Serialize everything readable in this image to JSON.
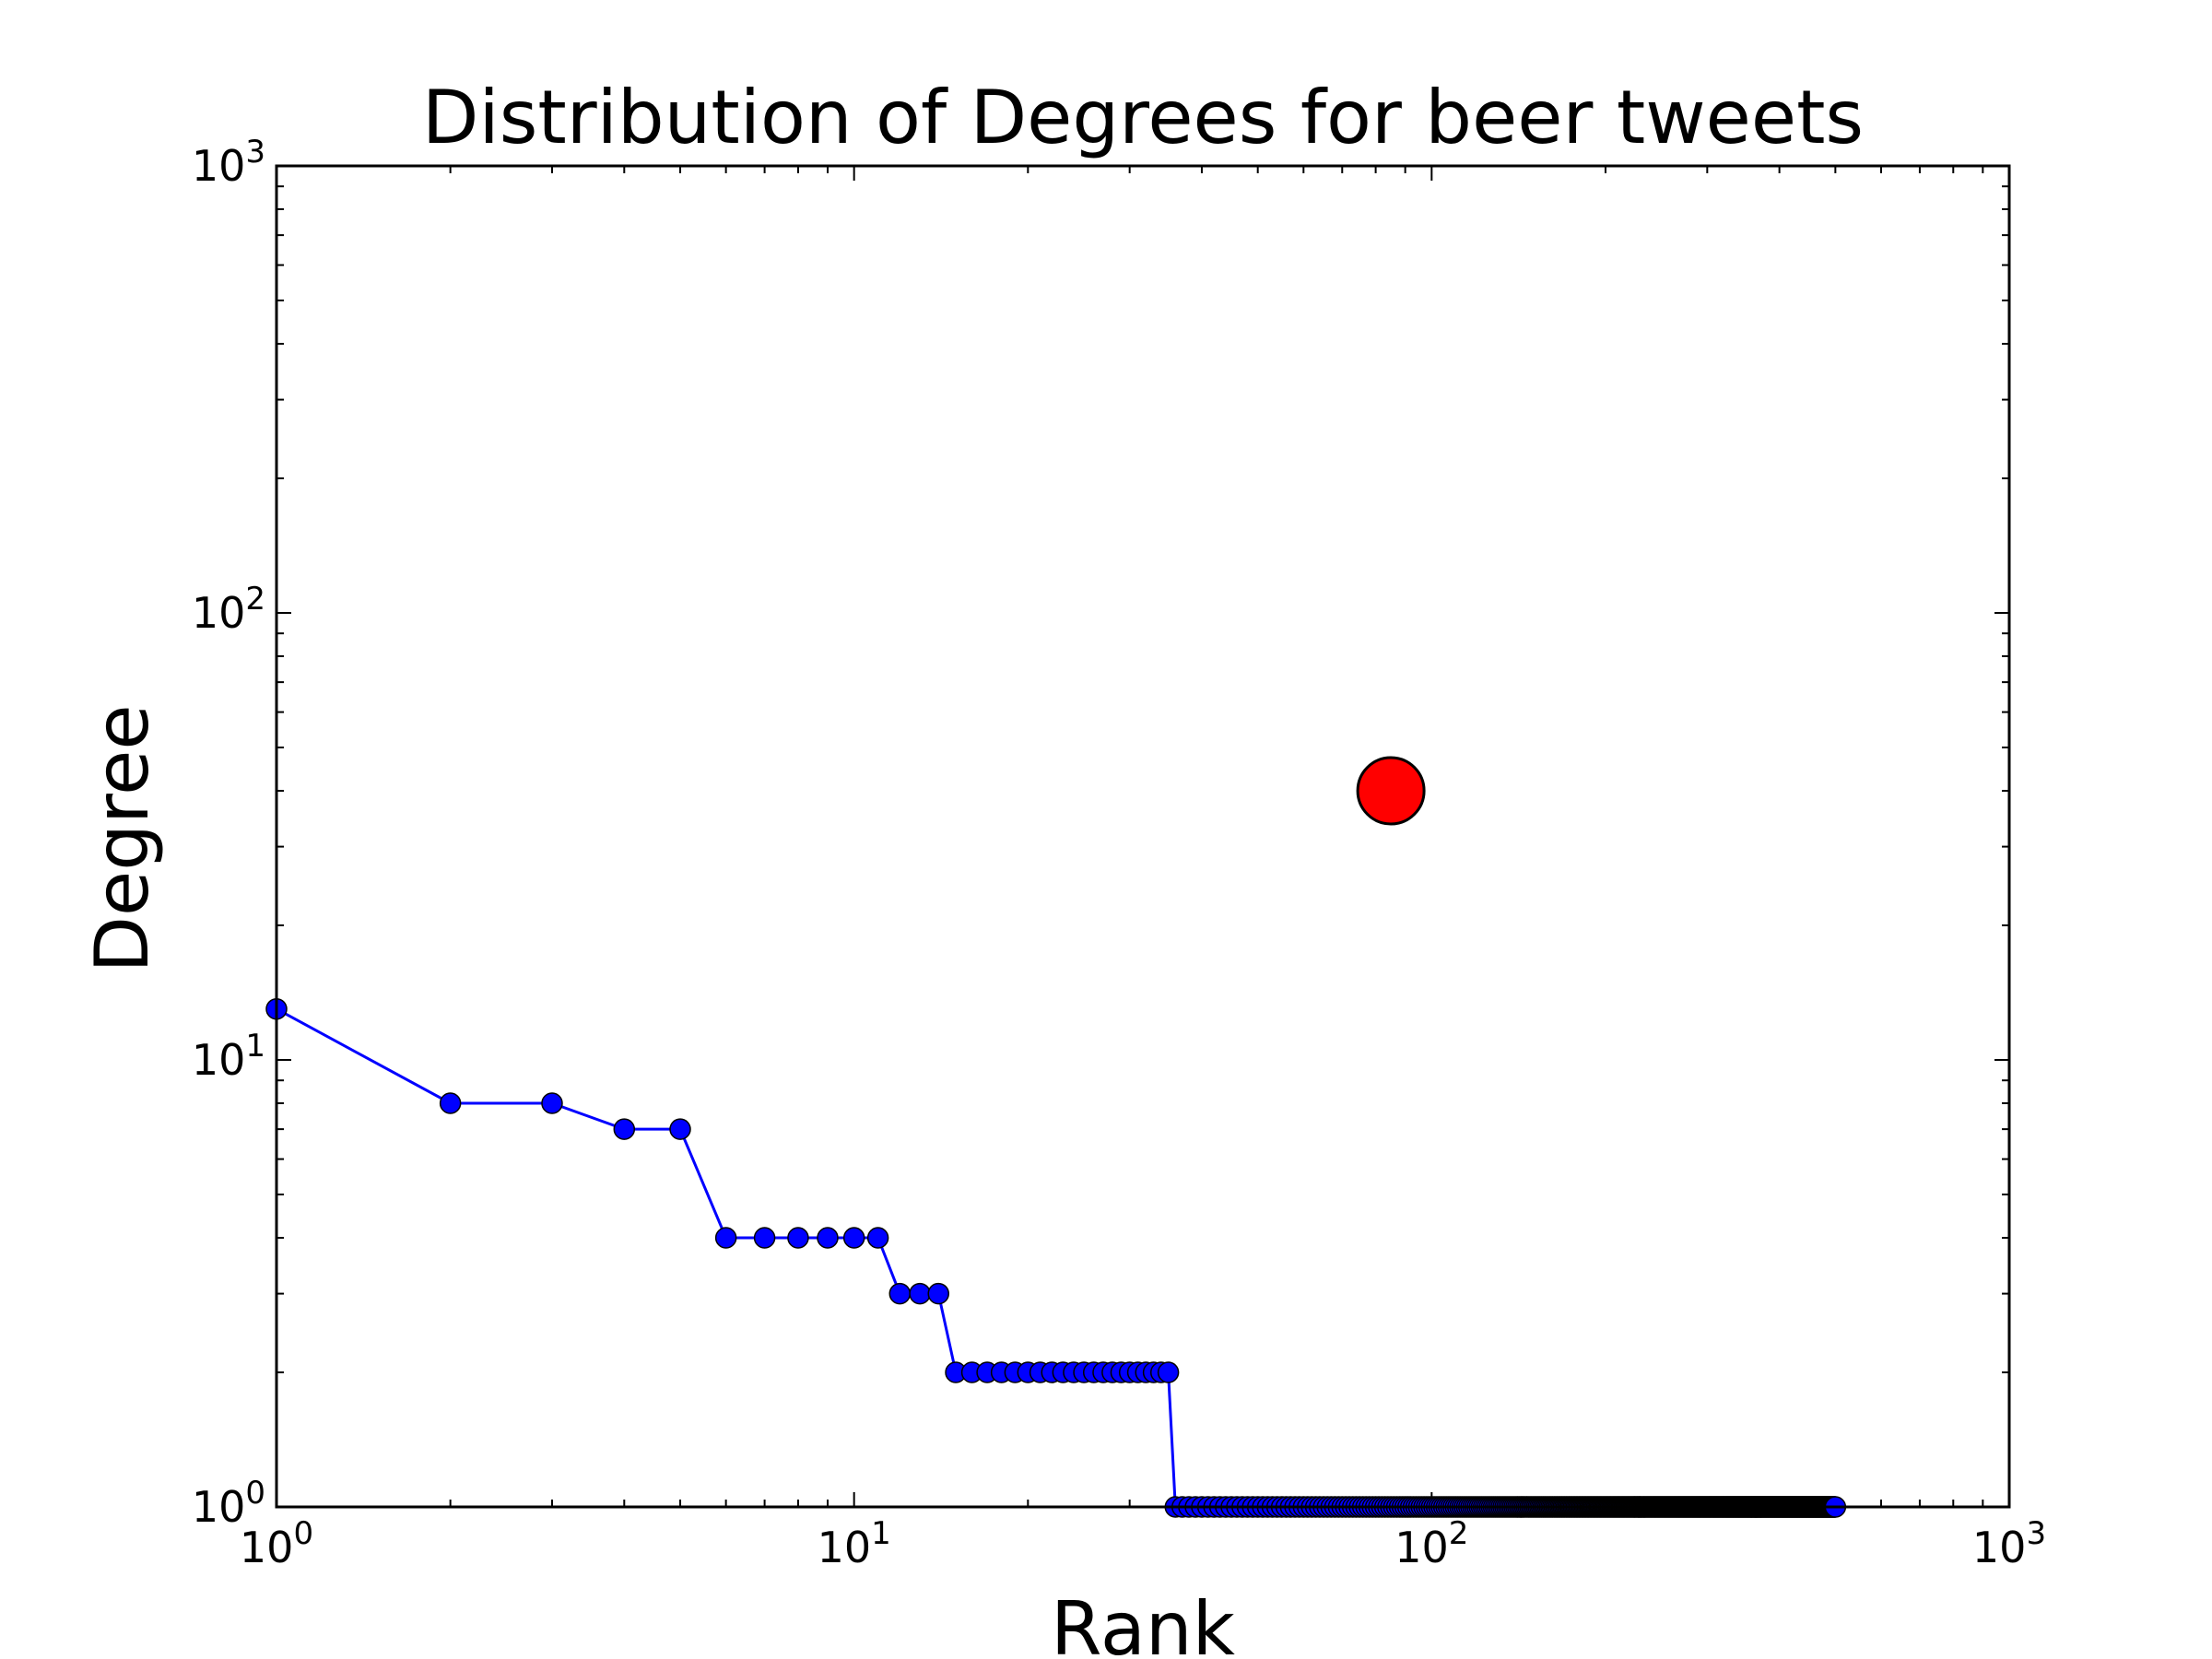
{
  "chart_data": {
    "type": "line",
    "title": "Distribution of Degrees for beer tweets",
    "xlabel": "Rank",
    "ylabel": "Degree",
    "xscale": "log",
    "yscale": "log",
    "xlim": [
      1,
      1000
    ],
    "ylim": [
      1,
      1000
    ],
    "x_ticks": [
      {
        "base": "10",
        "exp": "0",
        "value": 1
      },
      {
        "base": "10",
        "exp": "1",
        "value": 10
      },
      {
        "base": "10",
        "exp": "2",
        "value": 100
      },
      {
        "base": "10",
        "exp": "3",
        "value": 1000
      }
    ],
    "y_ticks": [
      {
        "base": "10",
        "exp": "0",
        "value": 1
      },
      {
        "base": "10",
        "exp": "1",
        "value": 10
      },
      {
        "base": "10",
        "exp": "2",
        "value": 100
      },
      {
        "base": "10",
        "exp": "3",
        "value": 1000
      }
    ],
    "grid": false,
    "series": [
      {
        "color": "#0000ff",
        "marker": "circle",
        "segments": [
          {
            "ranks": [
              1
            ],
            "degree": 13
          },
          {
            "ranks": [
              2,
              3
            ],
            "degree": 8
          },
          {
            "ranks": [
              4,
              5
            ],
            "degree": 7
          },
          {
            "ranks": [
              6,
              11
            ],
            "degree": 4
          },
          {
            "ranks": [
              12,
              14
            ],
            "degree": 3
          },
          {
            "ranks": [
              15,
              35
            ],
            "degree": 2
          },
          {
            "ranks": [
              36,
              500
            ],
            "degree": 1
          }
        ]
      },
      {
        "color": "#ff0000",
        "marker": "circle-large",
        "points": [
          {
            "x": 85,
            "y": 40
          }
        ]
      }
    ]
  }
}
